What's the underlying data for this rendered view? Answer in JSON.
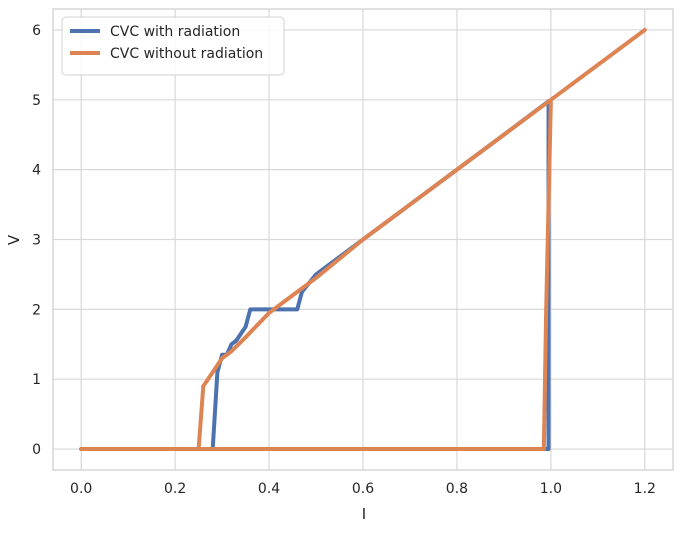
{
  "chart_data": {
    "type": "line",
    "xlabel": "I",
    "ylabel": "V",
    "xlim": [
      -0.06,
      1.26
    ],
    "ylim": [
      -0.3,
      6.3
    ],
    "xticks": [
      0.0,
      0.2,
      0.4,
      0.6,
      0.8,
      1.0,
      1.2
    ],
    "xtick_labels": [
      "0.0",
      "0.2",
      "0.4",
      "0.6",
      "0.8",
      "1.0",
      "1.2"
    ],
    "yticks": [
      0,
      1,
      2,
      3,
      4,
      5,
      6
    ],
    "ytick_labels": [
      "0",
      "1",
      "2",
      "3",
      "4",
      "5",
      "6"
    ],
    "grid": true,
    "legend_position": "top-left",
    "series": [
      {
        "name": "CVC with radiation",
        "color": "#4c72b0",
        "x": [
          0.0,
          0.27,
          0.28,
          0.29,
          0.3,
          0.31,
          0.32,
          0.33,
          0.34,
          0.35,
          0.36,
          0.4,
          0.44,
          0.46,
          0.47,
          0.5,
          0.6,
          0.7,
          0.8,
          0.9,
          0.995,
          0.995,
          0.99,
          0.28,
          0.0
        ],
        "y": [
          0.0,
          0.0,
          0.0,
          1.1,
          1.35,
          1.35,
          1.5,
          1.55,
          1.65,
          1.75,
          2.0,
          2.0,
          2.0,
          2.0,
          2.25,
          2.5,
          3.0,
          3.5,
          4.0,
          4.5,
          4.98,
          0.0,
          0.0,
          0.0,
          0.0
        ]
      },
      {
        "name": "CVC without radiation",
        "color": "#dd8452",
        "x": [
          0.0,
          0.25,
          0.26,
          0.28,
          0.3,
          0.32,
          0.35,
          0.4,
          0.45,
          0.5,
          0.6,
          0.7,
          0.8,
          0.9,
          1.0,
          1.1,
          1.2,
          1.2,
          1.1,
          1.0,
          0.99,
          0.985,
          0.0
        ],
        "y": [
          0.0,
          0.0,
          0.9,
          1.1,
          1.3,
          1.4,
          1.6,
          1.95,
          2.2,
          2.45,
          3.0,
          3.5,
          4.0,
          4.5,
          5.0,
          5.5,
          6.0,
          6.0,
          5.5,
          5.0,
          2.0,
          0.0,
          0.0
        ]
      }
    ]
  }
}
